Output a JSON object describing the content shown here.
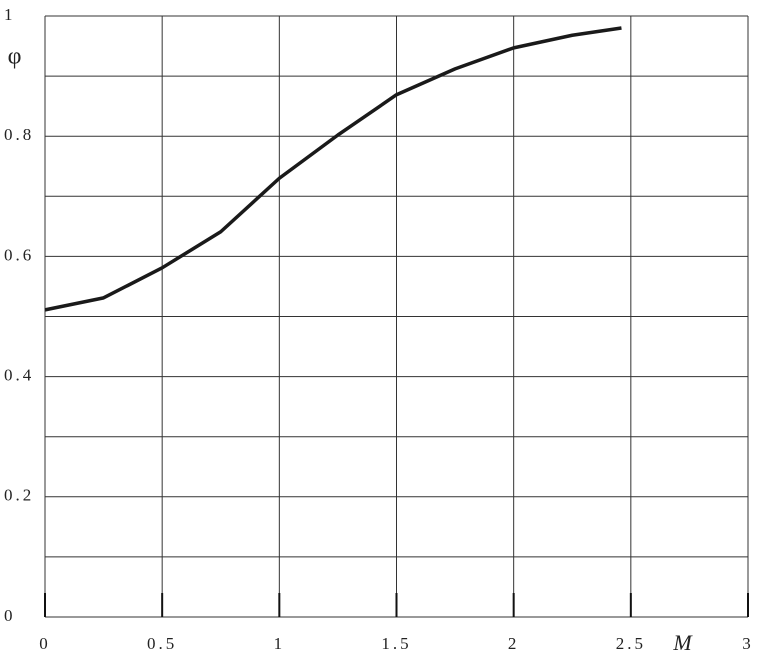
{
  "chart_data": {
    "type": "line",
    "x_label": "M",
    "y_label": "φ",
    "x": [
      0,
      0.25,
      0.5,
      0.75,
      1.0,
      1.25,
      1.5,
      1.75,
      2.0,
      2.25,
      2.46
    ],
    "series": [
      {
        "color": "#1a1a1a",
        "values": [
          0.511,
          0.531,
          0.581,
          0.641,
          0.73,
          0.802,
          0.869,
          0.912,
          0.947,
          0.968,
          0.98
        ]
      }
    ],
    "xlim": [
      0,
      3
    ],
    "ylim": [
      0,
      1
    ],
    "xticks": [
      0,
      0.5,
      1,
      1.5,
      2,
      2.5,
      3
    ],
    "yticks": [
      0,
      0.2,
      0.4,
      0.6,
      0.8,
      1
    ],
    "yminor": [
      0.1,
      0.3,
      0.5,
      0.7,
      0.9
    ],
    "grid": true
  }
}
